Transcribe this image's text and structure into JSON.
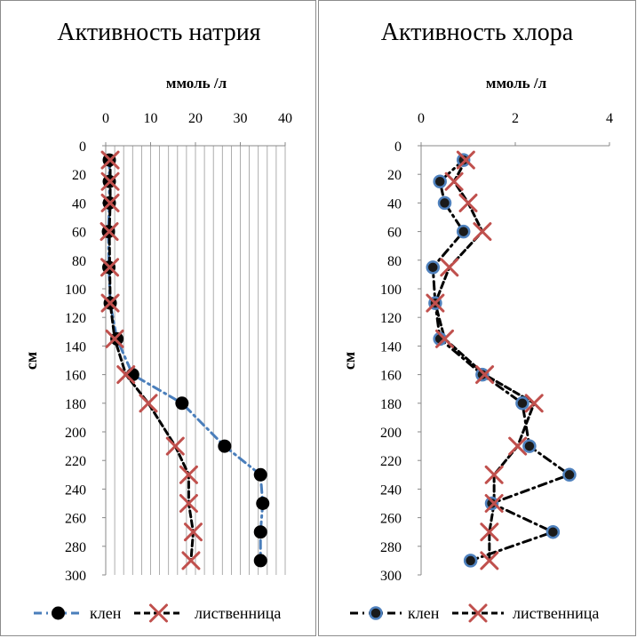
{
  "chart_data": [
    {
      "type": "line",
      "title": "Активность натрия",
      "xlabel": "ммоль /л",
      "ylabel": "см",
      "xlim": [
        0,
        40
      ],
      "ylim": [
        0,
        300
      ],
      "y_inverted": true,
      "x_axis_position": "top",
      "x_ticks": [
        "0",
        "10",
        "20",
        "30",
        "40"
      ],
      "y_ticks": [
        "0",
        "20",
        "40",
        "60",
        "80",
        "100",
        "120",
        "140",
        "160",
        "180",
        "200",
        "220",
        "240",
        "260",
        "280",
        "300"
      ],
      "grid": "vertical",
      "legend_position": "bottom",
      "series": [
        {
          "name": "клен",
          "line_color": "#4a7ebb",
          "line_style": "dash-dot",
          "marker": "filled-circle",
          "marker_color": "#000000",
          "points": [
            [
              0.8,
              10
            ],
            [
              0.8,
              25
            ],
            [
              0.8,
              40
            ],
            [
              0.6,
              60
            ],
            [
              0.7,
              85
            ],
            [
              1,
              110
            ],
            [
              2.5,
              135
            ],
            [
              6,
              160
            ],
            [
              17,
              180
            ],
            [
              26.5,
              210
            ],
            [
              34.5,
              230
            ],
            [
              35,
              250
            ],
            [
              34.5,
              270
            ],
            [
              34.5,
              290
            ]
          ]
        },
        {
          "name": "лиственница",
          "line_color": "#000000",
          "line_style": "dashed",
          "marker": "x-cross",
          "marker_color": "#c0504d",
          "points": [
            [
              1,
              10
            ],
            [
              1,
              25
            ],
            [
              1,
              40
            ],
            [
              0.8,
              60
            ],
            [
              0.9,
              85
            ],
            [
              1,
              110
            ],
            [
              2,
              135
            ],
            [
              4.5,
              160
            ],
            [
              9.5,
              180
            ],
            [
              15.5,
              210
            ],
            [
              18.5,
              230
            ],
            [
              18.5,
              250
            ],
            [
              19.5,
              270
            ],
            [
              19,
              290
            ]
          ]
        }
      ]
    },
    {
      "type": "line",
      "title": "Активность хлора",
      "xlabel": "ммоль /л",
      "ylabel": "см",
      "xlim": [
        0,
        4
      ],
      "ylim": [
        0,
        300
      ],
      "y_inverted": true,
      "x_axis_position": "top",
      "x_ticks": [
        "0",
        "2",
        "4"
      ],
      "y_ticks": [
        "0",
        "20",
        "40",
        "60",
        "80",
        "100",
        "120",
        "140",
        "160",
        "180",
        "200",
        "220",
        "240",
        "260",
        "280",
        "300"
      ],
      "grid": "none",
      "legend_position": "bottom",
      "series": [
        {
          "name": "клен",
          "line_color": "#000000",
          "line_style": "dash-dot",
          "marker": "ringed-circle",
          "marker_color": "#4f81bd",
          "points": [
            [
              0.9,
              10
            ],
            [
              0.4,
              25
            ],
            [
              0.5,
              40
            ],
            [
              0.9,
              60
            ],
            [
              0.25,
              85
            ],
            [
              0.3,
              110
            ],
            [
              0.4,
              135
            ],
            [
              1.3,
              160
            ],
            [
              2.15,
              180
            ],
            [
              2.3,
              210
            ],
            [
              3.15,
              230
            ],
            [
              1.5,
              250
            ],
            [
              2.8,
              270
            ],
            [
              1.05,
              290
            ]
          ]
        },
        {
          "name": "лиственница",
          "line_color": "#000000",
          "line_style": "dashed",
          "marker": "x-cross",
          "marker_color": "#c0504d",
          "points": [
            [
              0.95,
              10
            ],
            [
              0.7,
              25
            ],
            [
              1,
              40
            ],
            [
              1.3,
              60
            ],
            [
              0.6,
              85
            ],
            [
              0.3,
              110
            ],
            [
              0.5,
              135
            ],
            [
              1.35,
              160
            ],
            [
              2.4,
              180
            ],
            [
              2.05,
              210
            ],
            [
              1.55,
              230
            ],
            [
              1.55,
              250
            ],
            [
              1.45,
              270
            ],
            [
              1.45,
              290
            ]
          ]
        }
      ]
    }
  ]
}
